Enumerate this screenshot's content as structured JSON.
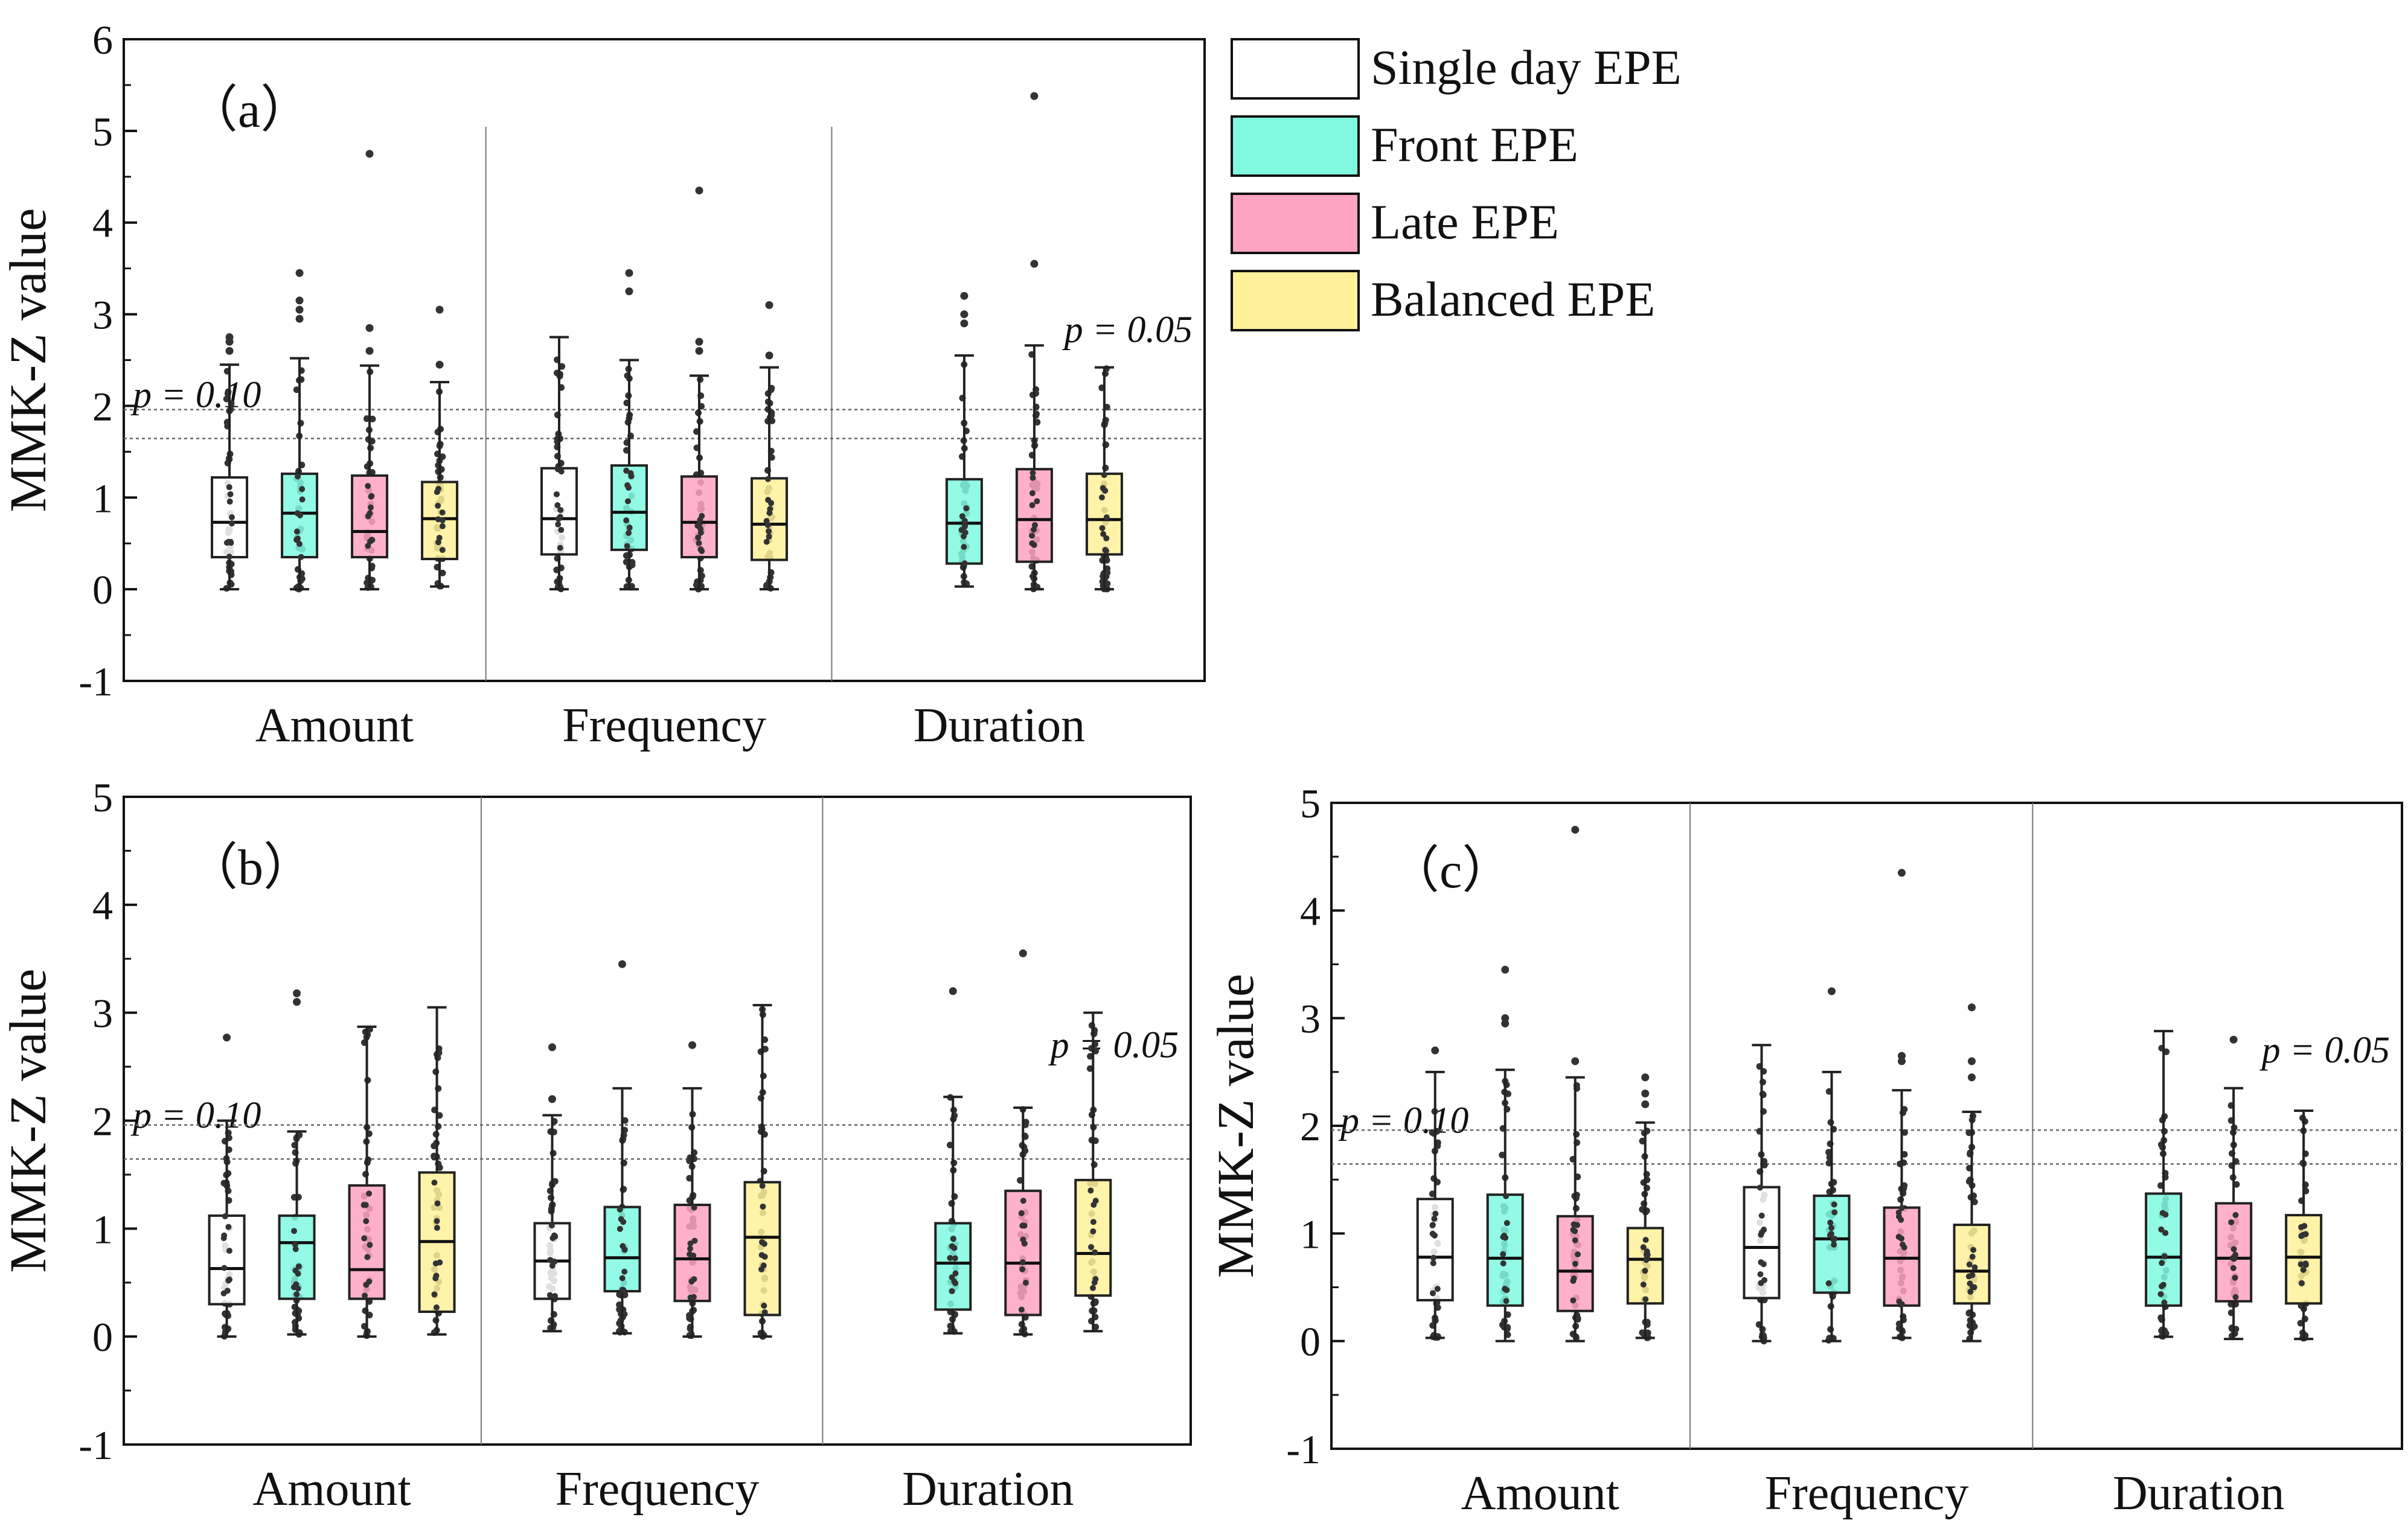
{
  "chart_data": [
    {
      "id": "a",
      "type": "box",
      "panel_label": "（a）",
      "ylabel": "MMK-Z value",
      "ylim": [
        -1,
        6
      ],
      "yticks": [
        -1,
        0,
        1,
        2,
        3,
        4,
        5,
        6
      ],
      "categories": [
        "Amount",
        "Frequency",
        "Duration"
      ],
      "threshold_lines": [
        {
          "value": 1.645,
          "label": "p = 0.10",
          "anchor": "left"
        },
        {
          "value": 1.96,
          "label": "p = 0.05",
          "anchor": "right"
        }
      ],
      "groups": [
        {
          "category": "Amount",
          "boxes": [
            {
              "series": "Single day EPE",
              "min": 0.0,
              "q1": 0.35,
              "median": 0.73,
              "q3": 1.22,
              "max": 2.45,
              "outliers": [
                2.6,
                2.7,
                2.75
              ]
            },
            {
              "series": "Front EPE",
              "min": 0.0,
              "q1": 0.35,
              "median": 0.83,
              "q3": 1.26,
              "max": 2.52,
              "outliers": [
                2.95,
                3.05,
                3.15,
                3.45
              ]
            },
            {
              "series": "Late EPE",
              "min": 0.0,
              "q1": 0.35,
              "median": 0.63,
              "q3": 1.24,
              "max": 2.44,
              "outliers": [
                2.6,
                2.85,
                4.75
              ]
            },
            {
              "series": "Balanced EPE",
              "min": 0.03,
              "q1": 0.33,
              "median": 0.77,
              "q3": 1.17,
              "max": 2.26,
              "outliers": [
                2.45,
                3.05
              ]
            }
          ]
        },
        {
          "category": "Frequency",
          "boxes": [
            {
              "series": "Single day EPE",
              "min": 0.0,
              "q1": 0.38,
              "median": 0.77,
              "q3": 1.32,
              "max": 2.75,
              "outliers": []
            },
            {
              "series": "Front EPE",
              "min": 0.0,
              "q1": 0.43,
              "median": 0.84,
              "q3": 1.35,
              "max": 2.5,
              "outliers": [
                3.25,
                3.45
              ]
            },
            {
              "series": "Late EPE",
              "min": 0.0,
              "q1": 0.35,
              "median": 0.73,
              "q3": 1.23,
              "max": 2.33,
              "outliers": [
                2.6,
                2.7,
                4.35
              ]
            },
            {
              "series": "Balanced EPE",
              "min": 0.0,
              "q1": 0.32,
              "median": 0.71,
              "q3": 1.21,
              "max": 2.42,
              "outliers": [
                2.55,
                3.1
              ]
            }
          ]
        },
        {
          "category": "Duration",
          "boxes": [
            {
              "series": "Single day EPE",
              "empty": true
            },
            {
              "series": "Front EPE",
              "min": 0.03,
              "q1": 0.28,
              "median": 0.72,
              "q3": 1.2,
              "max": 2.55,
              "outliers": [
                2.9,
                3.0,
                3.2
              ]
            },
            {
              "series": "Late EPE",
              "min": 0.0,
              "q1": 0.3,
              "median": 0.76,
              "q3": 1.31,
              "max": 2.66,
              "outliers": [
                3.55,
                5.38
              ]
            },
            {
              "series": "Balanced EPE",
              "min": 0.0,
              "q1": 0.38,
              "median": 0.76,
              "q3": 1.26,
              "max": 2.42,
              "outliers": []
            }
          ]
        }
      ]
    },
    {
      "id": "b",
      "type": "box",
      "panel_label": "（b）",
      "ylabel": "MMK-Z value",
      "ylim": [
        -1,
        5
      ],
      "yticks": [
        -1,
        0,
        1,
        2,
        3,
        4,
        5
      ],
      "categories": [
        "Amount",
        "Frequency",
        "Duration"
      ],
      "threshold_lines": [
        {
          "value": 1.645,
          "label": "p = 0.10",
          "anchor": "left"
        },
        {
          "value": 1.96,
          "label": "p = 0.05",
          "anchor": "right"
        }
      ],
      "groups": [
        {
          "category": "Amount",
          "boxes": [
            {
              "series": "Single day EPE",
              "min": 0.0,
              "q1": 0.3,
              "median": 0.63,
              "q3": 1.12,
              "max": 2.0,
              "outliers": [
                2.77
              ]
            },
            {
              "series": "Front EPE",
              "min": 0.02,
              "q1": 0.35,
              "median": 0.87,
              "q3": 1.12,
              "max": 1.9,
              "outliers": [
                3.1,
                3.18
              ]
            },
            {
              "series": "Late EPE",
              "min": 0.0,
              "q1": 0.35,
              "median": 0.62,
              "q3": 1.4,
              "max": 2.87,
              "outliers": []
            },
            {
              "series": "Balanced EPE",
              "min": 0.02,
              "q1": 0.23,
              "median": 0.88,
              "q3": 1.52,
              "max": 3.05,
              "outliers": []
            }
          ]
        },
        {
          "category": "Frequency",
          "boxes": [
            {
              "series": "Single day EPE",
              "min": 0.05,
              "q1": 0.35,
              "median": 0.7,
              "q3": 1.05,
              "max": 2.05,
              "outliers": [
                2.2,
                2.68
              ]
            },
            {
              "series": "Front EPE",
              "min": 0.03,
              "q1": 0.42,
              "median": 0.73,
              "q3": 1.2,
              "max": 2.3,
              "outliers": [
                3.45
              ]
            },
            {
              "series": "Late EPE",
              "min": 0.0,
              "q1": 0.33,
              "median": 0.72,
              "q3": 1.22,
              "max": 2.3,
              "outliers": [
                2.7
              ]
            },
            {
              "series": "Balanced EPE",
              "min": 0.0,
              "q1": 0.2,
              "median": 0.92,
              "q3": 1.43,
              "max": 3.07,
              "outliers": []
            }
          ]
        },
        {
          "category": "Duration",
          "boxes": [
            {
              "series": "Single day EPE",
              "empty": true
            },
            {
              "series": "Front EPE",
              "min": 0.03,
              "q1": 0.25,
              "median": 0.68,
              "q3": 1.05,
              "max": 2.22,
              "outliers": [
                3.2
              ]
            },
            {
              "series": "Late EPE",
              "min": 0.02,
              "q1": 0.2,
              "median": 0.68,
              "q3": 1.35,
              "max": 2.12,
              "outliers": [
                3.55
              ]
            },
            {
              "series": "Balanced EPE",
              "min": 0.05,
              "q1": 0.38,
              "median": 0.77,
              "q3": 1.45,
              "max": 3.0,
              "outliers": []
            }
          ]
        }
      ]
    },
    {
      "id": "c",
      "type": "box",
      "panel_label": "（c）",
      "ylabel": "MMK-Z value",
      "ylim": [
        -1,
        5
      ],
      "yticks": [
        -1,
        0,
        1,
        2,
        3,
        4,
        5
      ],
      "categories": [
        "Amount",
        "Frequency",
        "Duration"
      ],
      "threshold_lines": [
        {
          "value": 1.645,
          "label": "p = 0.10",
          "anchor": "left"
        },
        {
          "value": 1.96,
          "label": "p = 0.05",
          "anchor": "right"
        }
      ],
      "groups": [
        {
          "category": "Amount",
          "boxes": [
            {
              "series": "Single day EPE",
              "min": 0.03,
              "q1": 0.38,
              "median": 0.78,
              "q3": 1.32,
              "max": 2.5,
              "outliers": [
                2.7
              ]
            },
            {
              "series": "Front EPE",
              "min": 0.0,
              "q1": 0.33,
              "median": 0.77,
              "q3": 1.36,
              "max": 2.52,
              "outliers": [
                2.95,
                3.0,
                3.45
              ]
            },
            {
              "series": "Late EPE",
              "min": 0.0,
              "q1": 0.28,
              "median": 0.65,
              "q3": 1.16,
              "max": 2.45,
              "outliers": [
                2.6,
                4.75
              ]
            },
            {
              "series": "Balanced EPE",
              "min": 0.03,
              "q1": 0.35,
              "median": 0.76,
              "q3": 1.05,
              "max": 2.03,
              "outliers": [
                2.2,
                2.3,
                2.45
              ]
            }
          ]
        },
        {
          "category": "Frequency",
          "boxes": [
            {
              "series": "Single day EPE",
              "min": 0.0,
              "q1": 0.4,
              "median": 0.87,
              "q3": 1.43,
              "max": 2.75,
              "outliers": []
            },
            {
              "series": "Front EPE",
              "min": 0.0,
              "q1": 0.45,
              "median": 0.95,
              "q3": 1.35,
              "max": 2.5,
              "outliers": [
                3.25
              ]
            },
            {
              "series": "Late EPE",
              "min": 0.03,
              "q1": 0.33,
              "median": 0.77,
              "q3": 1.24,
              "max": 2.33,
              "outliers": [
                2.6,
                2.65,
                4.35
              ]
            },
            {
              "series": "Balanced EPE",
              "min": 0.0,
              "q1": 0.35,
              "median": 0.65,
              "q3": 1.08,
              "max": 2.13,
              "outliers": [
                2.45,
                2.6,
                3.1
              ]
            }
          ]
        },
        {
          "category": "Duration",
          "boxes": [
            {
              "series": "Single day EPE",
              "empty": true
            },
            {
              "series": "Front EPE",
              "min": 0.04,
              "q1": 0.33,
              "median": 0.78,
              "q3": 1.37,
              "max": 2.88,
              "outliers": []
            },
            {
              "series": "Late EPE",
              "min": 0.02,
              "q1": 0.37,
              "median": 0.77,
              "q3": 1.28,
              "max": 2.35,
              "outliers": [
                2.8
              ]
            },
            {
              "series": "Balanced EPE",
              "min": 0.02,
              "q1": 0.35,
              "median": 0.78,
              "q3": 1.17,
              "max": 2.14,
              "outliers": []
            }
          ]
        }
      ]
    }
  ],
  "legend": {
    "placement": "top-right",
    "entries": [
      {
        "label": "Single day EPE",
        "color": "#ffffff"
      },
      {
        "label": "Front EPE",
        "color": "#7ff9e0"
      },
      {
        "label": "Late EPE",
        "color": "#ffa3c2"
      },
      {
        "label": "Balanced EPE",
        "color": "#fff09a"
      }
    ]
  },
  "colors": {
    "Single day EPE": "#ffffff",
    "Front EPE": "#7ff9e0",
    "Late EPE": "#ffa3c2",
    "Balanced EPE": "#fff09a",
    "box_stroke": "#222222"
  }
}
